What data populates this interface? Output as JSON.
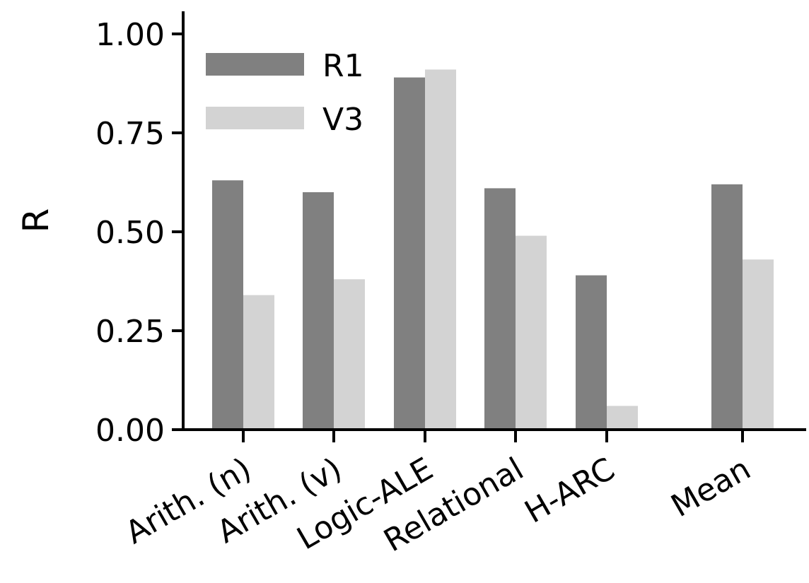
{
  "chart_data": {
    "type": "bar",
    "title": "",
    "xlabel": "",
    "ylabel": "R",
    "ylim": [
      0,
      1.05
    ],
    "yticks": [
      "0.00",
      "0.25",
      "0.50",
      "0.75",
      "1.00"
    ],
    "ytick_values": [
      0,
      0.25,
      0.5,
      0.75,
      1.0
    ],
    "categories": [
      "Arith. (n)",
      "Arith. (v)",
      "Logic-ALE",
      "Relational",
      "H-ARC",
      "Mean"
    ],
    "series": [
      {
        "name": "R1",
        "color": "#808080",
        "values": [
          0.63,
          0.6,
          0.89,
          0.61,
          0.39,
          0.62
        ]
      },
      {
        "name": "V3",
        "color": "#d3d3d3",
        "values": [
          0.34,
          0.38,
          0.91,
          0.49,
          0.06,
          0.43
        ]
      }
    ],
    "legend_position": "top-left",
    "grid": false
  }
}
